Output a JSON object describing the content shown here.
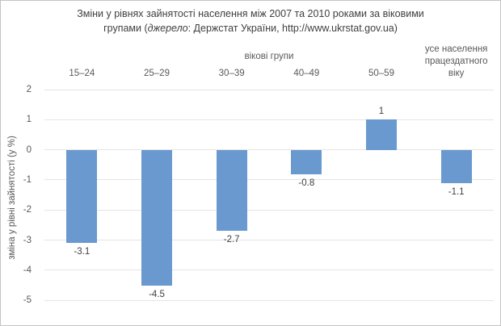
{
  "title": {
    "line1": "Зміни у рівнях зайнятості населення між 2007 та 2010 роками за віковими",
    "line2_pre": "групами (",
    "line2_italic": "джерело",
    "line2_post": ": Держстат України, http://www.ukrstat.gov.ua)"
  },
  "chart_data": {
    "type": "bar",
    "title": "Зміни у рівнях зайнятості населення між 2007 та 2010 роками за віковими групами (джерело: Держстат України, http://www.ukrstat.gov.ua)",
    "x_axis_title": "вікові групи",
    "ylabel": "зміна у рівні зайнятості (у %)",
    "categories": [
      "15–24",
      "25–29",
      "30–39",
      "40–49",
      "50–59",
      "усе населення працездатного віку"
    ],
    "values": [
      -3.1,
      -4.5,
      -2.7,
      -0.8,
      1,
      -1.1
    ],
    "data_labels": [
      "-3.1",
      "-4.5",
      "-2.7",
      "-0.8",
      "1",
      "-1.1"
    ],
    "y_ticks": [
      2,
      1,
      0,
      -1,
      -2,
      -3,
      -4,
      -5
    ],
    "ylim": [
      -5,
      2
    ],
    "grid": true,
    "legend": "none",
    "bar_color": "#6A99D0",
    "gridline_color": "#E4E4E4",
    "title_color": "#404040",
    "axis_text_color": "#595959"
  }
}
